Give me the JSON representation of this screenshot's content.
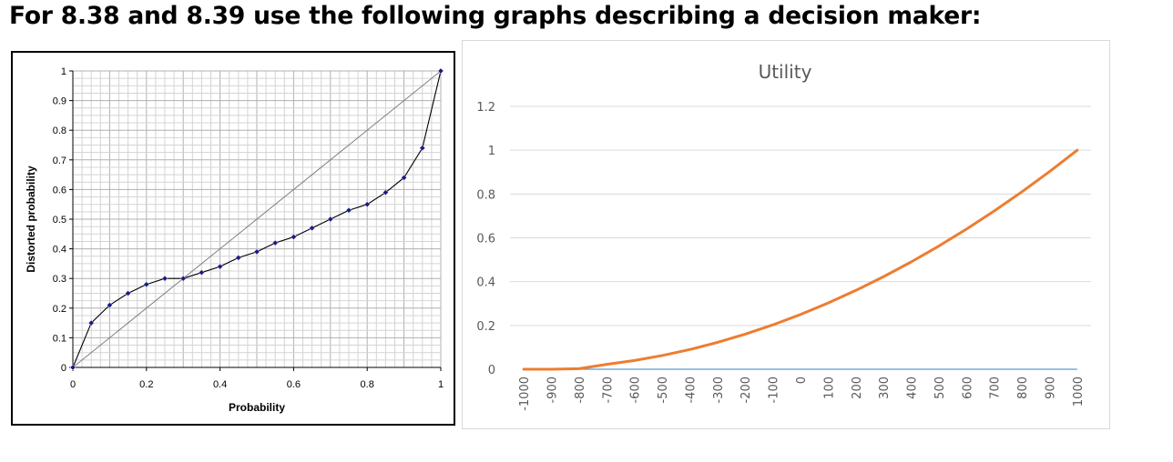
{
  "heading": "For 8.38 and 8.39 use the following graphs describing a decision maker:",
  "chart_data": [
    {
      "type": "line",
      "title": "",
      "xlabel": "Probability",
      "ylabel": "Distorted probability",
      "xlim": [
        0,
        1
      ],
      "ylim": [
        0,
        1
      ],
      "grid": true,
      "x_ticks": [
        "0",
        "0.2",
        "0.4",
        "0.6",
        "0.8",
        "1"
      ],
      "y_ticks": [
        "0",
        "0.1",
        "0.2",
        "0.3",
        "0.4",
        "0.5",
        "0.6",
        "0.7",
        "0.8",
        "0.9",
        "1"
      ],
      "series": [
        {
          "style": "reference",
          "color": "#808080",
          "x": [
            0,
            1
          ],
          "y": [
            0,
            1
          ]
        },
        {
          "style": "markers",
          "color": "#000000",
          "marker_color": "#1a1a8c",
          "x": [
            0,
            0.05,
            0.1,
            0.15,
            0.2,
            0.25,
            0.3,
            0.35,
            0.4,
            0.45,
            0.5,
            0.55,
            0.6,
            0.65,
            0.7,
            0.75,
            0.8,
            0.85,
            0.9,
            0.95,
            1
          ],
          "y": [
            0,
            0.15,
            0.21,
            0.25,
            0.28,
            0.3,
            0.3,
            0.32,
            0.34,
            0.37,
            0.39,
            0.42,
            0.44,
            0.47,
            0.5,
            0.53,
            0.55,
            0.59,
            0.64,
            0.74,
            1
          ]
        }
      ]
    },
    {
      "type": "line",
      "title": "Utility",
      "xlabel": "",
      "ylabel": "",
      "ylim": [
        0,
        1.2
      ],
      "grid": true,
      "categories": [
        "-1000",
        "-900",
        "-800",
        "-700",
        "-600",
        "-500",
        "-400",
        "-300",
        "-200",
        "-100",
        "0",
        "100",
        "200",
        "300",
        "400",
        "500",
        "600",
        "700",
        "800",
        "900",
        "1000"
      ],
      "y_ticks": [
        "0",
        "0.2",
        "0.4",
        "0.6",
        "0.8",
        "1",
        "1.2"
      ],
      "series": [
        {
          "color": "#ed7d31",
          "values": [
            0,
            0,
            0.0025,
            0.0225,
            0.04,
            0.0625,
            0.09,
            0.1225,
            0.16,
            0.2025,
            0.25,
            0.3025,
            0.36,
            0.4225,
            0.49,
            0.5625,
            0.64,
            0.7225,
            0.81,
            0.9025,
            1
          ]
        }
      ]
    }
  ]
}
